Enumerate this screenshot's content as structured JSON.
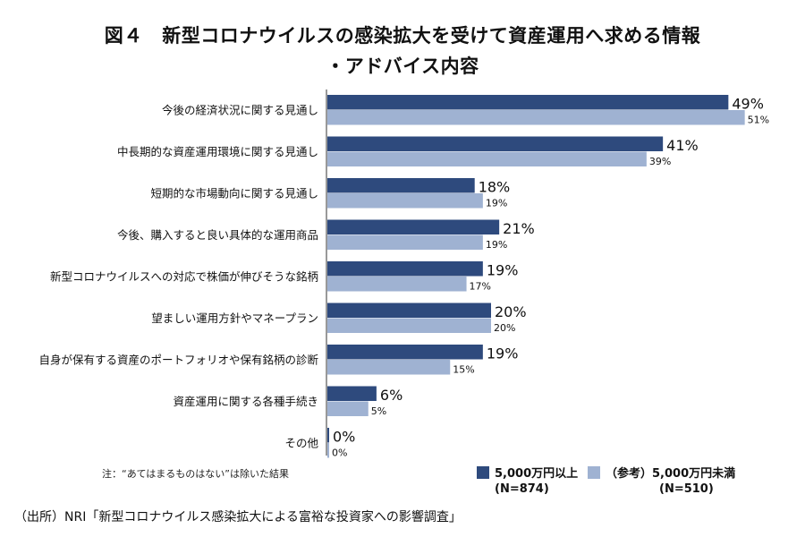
{
  "chart_data": {
    "type": "bar",
    "orientation": "horizontal",
    "title": "図４　新型コロナウイルスの感染拡大を受けて資産運用へ求める情報",
    "subtitle": "・アドバイス内容",
    "categories": [
      "今後の経済状況に関する見通し",
      "中長期的な資産運用環境に関する見通し",
      "短期的な市場動向に関する見通し",
      "今後、購入すると良い具体的な運用商品",
      "新型コロナウイルスへの対応で株価が伸びそうな銘柄",
      "望ましい運用方針やマネープラン",
      "自身が保有する資産のポートフォリオや保有銘柄の診断",
      "資産運用に関する各種手続き",
      "その他"
    ],
    "series": [
      {
        "name": "5,000万円以上",
        "n": "(N=874)",
        "color": "#2e4a7d",
        "values": [
          49,
          41,
          18,
          21,
          19,
          20,
          19,
          6,
          0
        ],
        "labels": [
          "49%",
          "41%",
          "18%",
          "21%",
          "19%",
          "20%",
          "19%",
          "6%",
          "0%"
        ]
      },
      {
        "name": "（参考）5,000万円未満",
        "n": "(N=510)",
        "color": "#9fb2d2",
        "values": [
          51,
          39,
          19,
          19,
          17,
          20,
          15,
          5,
          0
        ],
        "labels": [
          "51%",
          "39%",
          "19%",
          "19%",
          "17%",
          "20%",
          "15%",
          "5%",
          "0%"
        ]
      }
    ],
    "xlim": [
      0,
      55
    ],
    "grid": false,
    "legend_position": "bottom-right",
    "note": "注：“あてはまるものはない”は除いた結果",
    "source": "（出所）NRI「新型コロナウイルス感染拡大による富裕な投資家への影響調査」"
  }
}
